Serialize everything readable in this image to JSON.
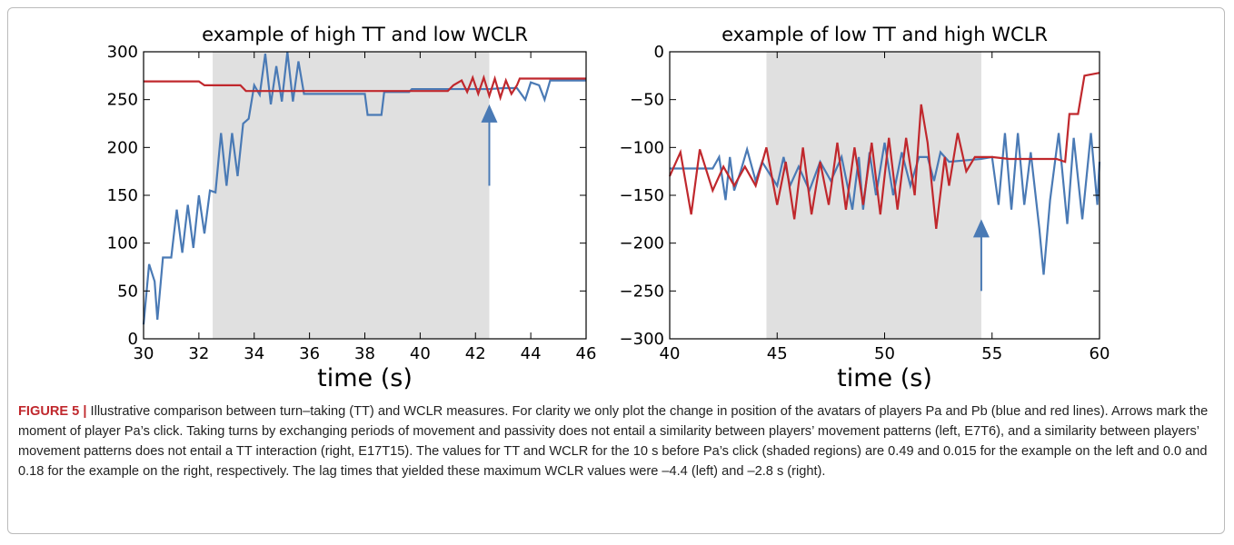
{
  "chart_data": [
    {
      "type": "line",
      "title": "example of high TT and low WCLR",
      "xlabel": "time (s)",
      "xlim": [
        30,
        46
      ],
      "ylim": [
        0,
        300
      ],
      "xticks": [
        30,
        32,
        34,
        36,
        38,
        40,
        42,
        44,
        46
      ],
      "yticks": [
        0,
        50,
        100,
        150,
        200,
        250,
        300
      ],
      "shaded_region": [
        32.5,
        42.5
      ],
      "shade_color": "#e0e0e0",
      "arrow": {
        "x": 42.5,
        "y": [
          160,
          245
        ],
        "color": "#4a7ab5"
      },
      "series": [
        {
          "color": "#4a7ab5",
          "x": [
            30,
            30.2,
            30.4,
            30.5,
            30.7,
            31,
            31.2,
            31.4,
            31.6,
            31.8,
            32,
            32.2,
            32.4,
            32.6,
            32.8,
            33,
            33.2,
            33.4,
            33.6,
            33.8,
            34,
            34.2,
            34.4,
            34.6,
            34.8,
            35,
            35.2,
            35.4,
            35.6,
            35.8,
            38,
            38.1,
            38.6,
            38.7,
            39.6,
            39.7,
            42.5,
            43,
            43.5,
            43.8,
            44,
            44.3,
            44.5,
            44.7,
            45,
            46
          ],
          "values": [
            15,
            78,
            60,
            20,
            85,
            85,
            135,
            90,
            140,
            95,
            150,
            110,
            155,
            153,
            215,
            160,
            215,
            170,
            225,
            230,
            265,
            255,
            298,
            245,
            285,
            248,
            300,
            248,
            290,
            256,
            256,
            234,
            234,
            258,
            258,
            261,
            261,
            262,
            262,
            250,
            268,
            265,
            250,
            270,
            270,
            270
          ]
        },
        {
          "color": "#c0282d",
          "x": [
            30,
            32,
            32.2,
            33.5,
            33.7,
            41,
            41.2,
            41.5,
            41.7,
            41.9,
            42.1,
            42.3,
            42.5,
            42.7,
            42.9,
            43.1,
            43.3,
            43.5,
            43.6,
            46
          ],
          "values": [
            269,
            269,
            265,
            265,
            259,
            259,
            265,
            270,
            258,
            273,
            256,
            273,
            254,
            272,
            252,
            270,
            256,
            265,
            272,
            272
          ]
        }
      ]
    },
    {
      "type": "line",
      "title": "example of low TT and high WCLR",
      "xlabel": "time (s)",
      "xlim": [
        40,
        60
      ],
      "ylim": [
        -300,
        0
      ],
      "xticks": [
        40,
        45,
        50,
        55,
        60
      ],
      "yticks": [
        {
          "value": -300,
          "label": "−300"
        },
        {
          "value": -250,
          "label": "−250"
        },
        {
          "value": -200,
          "label": "−200"
        },
        {
          "value": -150,
          "label": "−150"
        },
        {
          "value": -100,
          "label": "−100"
        },
        {
          "value": -50,
          "label": "−50"
        },
        0
      ],
      "shaded_region": [
        44.5,
        54.5
      ],
      "shade_color": "#e0e0e0",
      "arrow": {
        "x": 54.5,
        "y": [
          -250,
          -175
        ],
        "color": "#4a7ab5"
      },
      "series": [
        {
          "color": "#4a7ab5",
          "x": [
            40,
            42,
            42.3,
            42.6,
            42.8,
            43,
            43.3,
            43.6,
            44,
            44.3,
            45,
            45.3,
            45.6,
            46,
            46.5,
            47,
            47.5,
            48,
            48.5,
            48.8,
            49,
            49.3,
            49.6,
            50,
            50.4,
            50.8,
            51.2,
            51.6,
            52,
            52.3,
            52.6,
            53,
            54.5,
            55,
            55.3,
            55.6,
            55.9,
            56.2,
            56.5,
            56.8,
            57.2,
            57.4,
            57.7,
            58.1,
            58.5,
            58.8,
            59.2,
            59.6,
            59.9,
            60
          ],
          "values": [
            -122,
            -122,
            -110,
            -155,
            -110,
            -145,
            -125,
            -102,
            -135,
            -115,
            -140,
            -110,
            -140,
            -120,
            -145,
            -115,
            -135,
            -110,
            -165,
            -110,
            -165,
            -105,
            -150,
            -95,
            -150,
            -105,
            -140,
            -110,
            -110,
            -135,
            -105,
            -115,
            -112,
            -110,
            -160,
            -85,
            -165,
            -85,
            -160,
            -105,
            -185,
            -233,
            -155,
            -85,
            -180,
            -90,
            -175,
            -85,
            -160,
            -115
          ]
        },
        {
          "color": "#c0282d",
          "x": [
            40,
            40.5,
            41,
            41.4,
            42,
            42.5,
            43,
            43.5,
            44,
            44.5,
            45,
            45.4,
            45.8,
            46.2,
            46.6,
            47,
            47.4,
            47.8,
            48.2,
            48.6,
            49,
            49.4,
            49.8,
            50.2,
            50.6,
            51,
            51.4,
            51.7,
            52,
            52.4,
            52.8,
            53,
            53.4,
            53.8,
            54.2,
            55,
            55.8,
            58,
            58.4,
            58.6,
            59,
            59.3,
            60
          ],
          "values": [
            -130,
            -105,
            -170,
            -102,
            -145,
            -120,
            -140,
            -120,
            -140,
            -100,
            -160,
            -115,
            -175,
            -100,
            -170,
            -115,
            -160,
            -95,
            -165,
            -100,
            -160,
            -95,
            -170,
            -90,
            -165,
            -90,
            -150,
            -55,
            -95,
            -185,
            -110,
            -140,
            -85,
            -125,
            -110,
            -110,
            -112,
            -112,
            -115,
            -65,
            -65,
            -25,
            -22
          ]
        }
      ]
    }
  ],
  "caption": {
    "label": "FIGURE 5 |",
    "text": "Illustrative comparison between turn–taking (TT) and WCLR measures. For clarity we only plot the change in position of the avatars of players Pa and Pb (blue and red lines). Arrows mark the moment of player Pa’s click. Taking turns by exchanging periods of movement and passivity does not entail a similarity between players’ movement patterns (left, E7T6), and a similarity between players’ movement patterns does not entail a TT interaction (right, E17T15). The values for TT and WCLR for the 10 s before Pa’s click (shaded regions) are 0.49 and 0.015 for the example on the left and 0.0 and 0.18 for the example on the right, respectively. The lag times that yielded these maximum WCLR values were –4.4 (left) and –2.8 s (right)."
  }
}
